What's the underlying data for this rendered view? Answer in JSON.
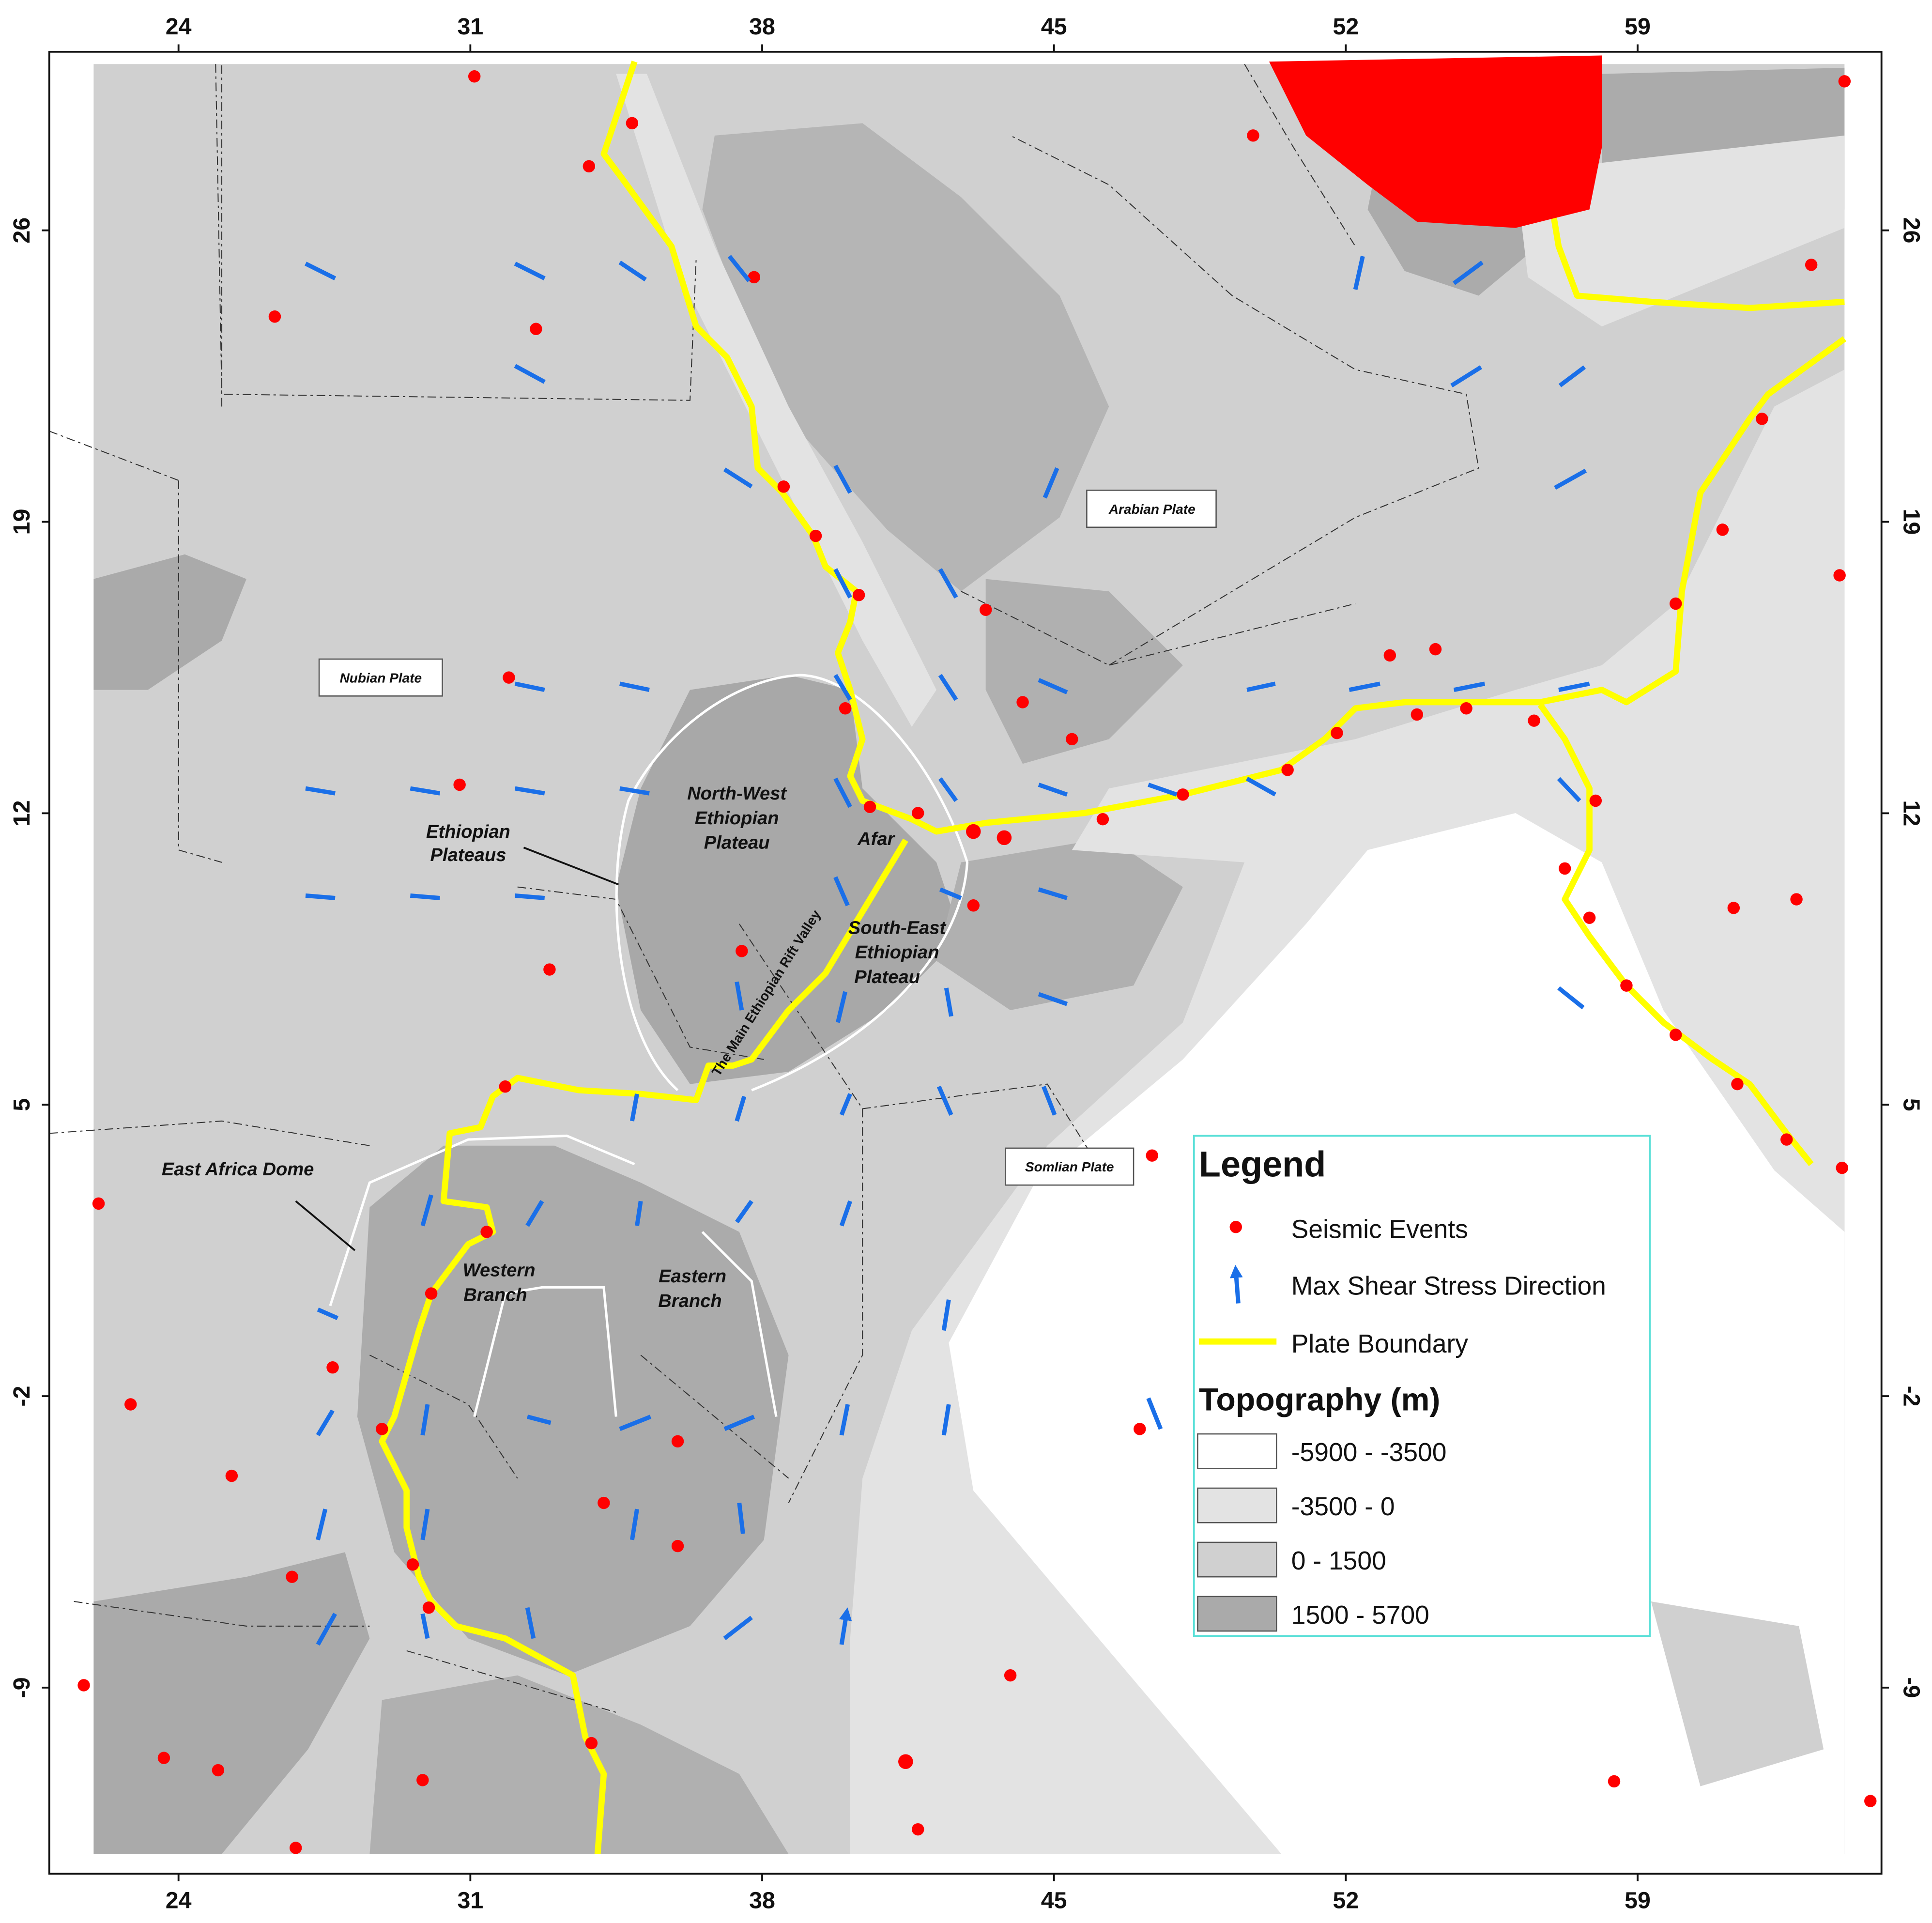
{
  "map": {
    "xlim": [
      20.9,
      64.85
    ],
    "ylim": [
      -13.47,
      30.29
    ],
    "xticks": [
      24,
      31,
      38,
      45,
      52,
      59
    ],
    "yticks": [
      26,
      19,
      12,
      5,
      -2,
      -9
    ],
    "regions": {
      "nubian_plate": "Nubian Plate",
      "arabian_plate": "Arabian Plate",
      "somalian_plate": "Somlian Plate",
      "ethiopian_plateaus": [
        "Ethiopian",
        "Plateaus"
      ],
      "nw_plateau": [
        "North-West",
        "Ethiopian",
        "Plateau"
      ],
      "afar": "Afar",
      "se_plateau": [
        "South-East",
        "Ethiopian",
        "Plateau"
      ],
      "rift_valley": "The Main Ethiopian Rift Valley",
      "dome": "East Africa Dome",
      "western_branch": [
        "Western",
        "Branch"
      ],
      "eastern_branch": [
        "Eastern",
        "Branch"
      ]
    },
    "legend": {
      "title": "Legend",
      "items": [
        "Seismic Events",
        "Max Shear Stress Direction",
        "Plate Boundary"
      ],
      "topography": {
        "title": "Topography (m)",
        "classes": [
          "-5900 - -3500",
          "-3500 - 0",
          "0 - 1500",
          "1500 - 5700"
        ]
      }
    }
  }
}
